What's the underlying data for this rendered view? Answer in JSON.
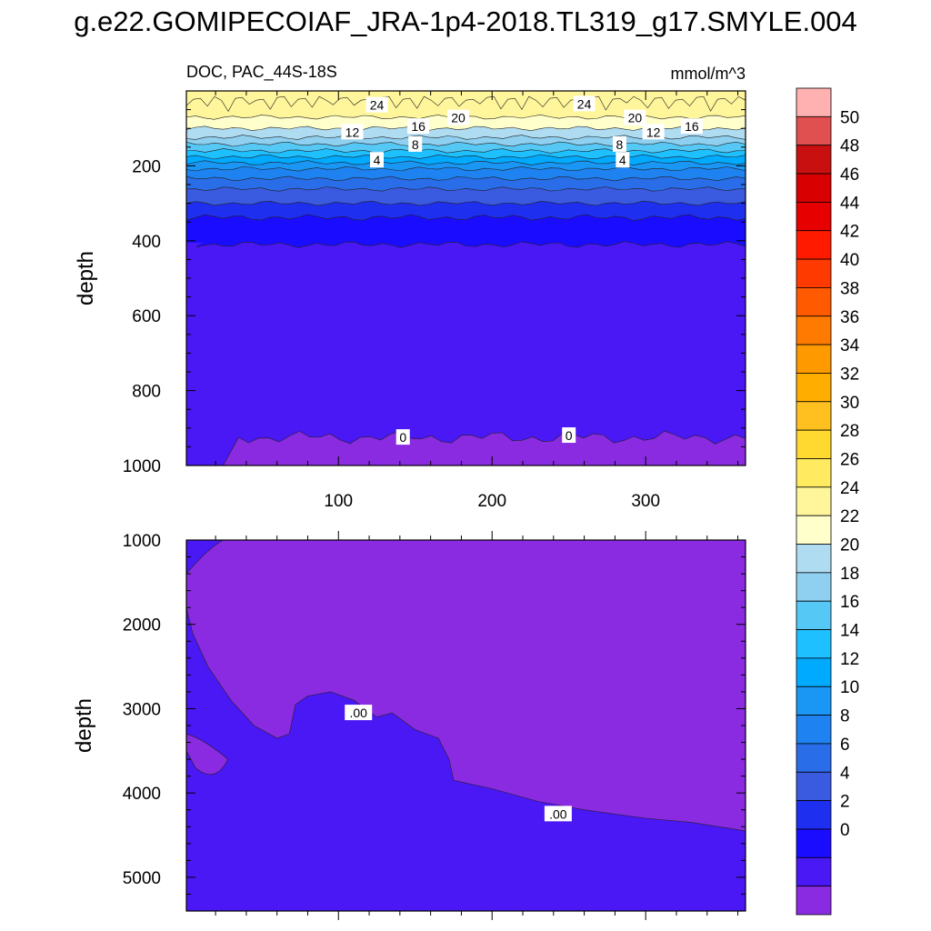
{
  "title": "g.e22.GOMIPECOIAF_JRA-1p4-2018.TL319_g17.SMYLE.004",
  "colors": [
    "#8a2be2",
    "#4a17f5",
    "#1a0cff",
    "#1e2ff0",
    "#3a5ae0",
    "#2a6de8",
    "#1e82f0",
    "#1a96f5",
    "#00aaff",
    "#1ec0ff",
    "#56c8f5",
    "#8fd0f0",
    "#b0dcf2",
    "#ffffcc",
    "#fff59a",
    "#ffea60",
    "#ffd830",
    "#ffc020",
    "#ffae00",
    "#ff9900",
    "#ff7a00",
    "#ff5a00",
    "#ff3a00",
    "#ff1a00",
    "#e60000",
    "#d80000",
    "#c81010",
    "#e05050",
    "#ffb0b0"
  ],
  "chart_data": [
    {
      "type": "heatmap",
      "subtitle_left": "DOC, PAC_44S-18S",
      "subtitle_right": "mmol/m^3",
      "ylabel": "depth",
      "xlabel": "",
      "xlim": [
        1,
        365
      ],
      "ylim": [
        1000,
        0
      ],
      "x_ticks": [
        "100",
        "200",
        "300"
      ],
      "y_ticks": [
        "200",
        "400",
        "600",
        "800",
        "1000"
      ],
      "contour_levels": [
        0,
        2,
        4,
        6,
        8,
        10,
        12,
        14,
        16,
        18,
        20,
        22,
        24,
        26
      ],
      "contour_labels": [
        "24",
        "24",
        "20",
        "20",
        "16",
        "16",
        "12",
        "12",
        "8",
        "8",
        "4",
        "4",
        "0",
        "0"
      ]
    },
    {
      "type": "heatmap",
      "ylabel": "depth",
      "xlim": [
        1,
        365
      ],
      "ylim": [
        5400,
        1000
      ],
      "y_ticks": [
        "1000",
        "2000",
        "3000",
        "4000",
        "5000"
      ],
      "contour_labels": [
        ".00",
        ".00"
      ]
    }
  ],
  "colorbar": {
    "labels": [
      "50",
      "48",
      "46",
      "44",
      "42",
      "40",
      "38",
      "36",
      "34",
      "32",
      "30",
      "28",
      "26",
      "24",
      "22",
      "20",
      "18",
      "16",
      "14",
      "12",
      "10",
      "8",
      "6",
      "4",
      "2",
      "0"
    ]
  }
}
